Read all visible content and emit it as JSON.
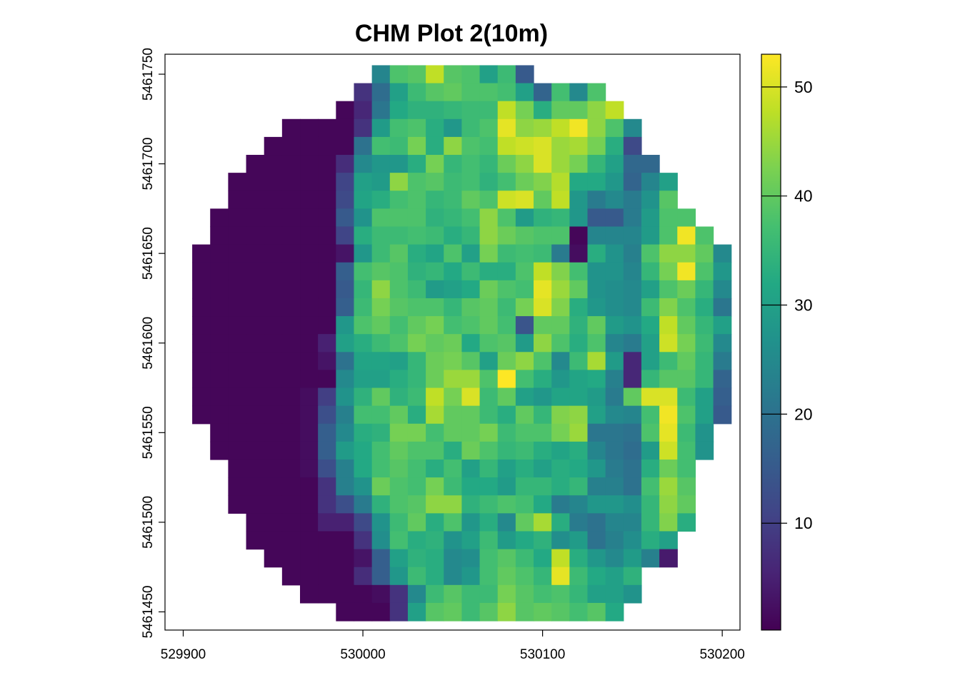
{
  "chart_data": {
    "type": "heatmap",
    "title": "CHM Plot 2(10m)",
    "xlabel": "",
    "ylabel": "",
    "x_ticks": [
      529900,
      530000,
      530100,
      530200
    ],
    "y_ticks": [
      5461450,
      5461500,
      5461550,
      5461600,
      5461650,
      5461700,
      5461750
    ],
    "xlim": [
      529890,
      530210
    ],
    "ylim": [
      5461440,
      5461760
    ],
    "cell_size": 10,
    "x_start": 529900,
    "y_start": 5461750,
    "colorbar": {
      "ticks": [
        10,
        20,
        30,
        40,
        50
      ],
      "range": [
        0.2,
        53
      ],
      "palette": "viridis"
    },
    "grid": [
      [
        null,
        null,
        null,
        null,
        null,
        null,
        null,
        null,
        null,
        null,
        null,
        24,
        38,
        39,
        48,
        39,
        38,
        30,
        36,
        15,
        null,
        null,
        null,
        null,
        null,
        null,
        null,
        null,
        null,
        null,
        null
      ],
      [
        null,
        null,
        null,
        null,
        null,
        null,
        null,
        null,
        null,
        null,
        8,
        19,
        30,
        36,
        39,
        40,
        38,
        38,
        37,
        30,
        17,
        37,
        25,
        38,
        null,
        null,
        null,
        null,
        null,
        null,
        null
      ],
      [
        null,
        null,
        null,
        null,
        null,
        null,
        null,
        null,
        null,
        1,
        6,
        21,
        32,
        34,
        34,
        35,
        36,
        36,
        48,
        42,
        33,
        40,
        40,
        44,
        48,
        null,
        null,
        null,
        null,
        null,
        null
      ],
      [
        null,
        null,
        null,
        null,
        null,
        null,
        1,
        1,
        1,
        1,
        8,
        29,
        37,
        38,
        33,
        28,
        36,
        38,
        51,
        44,
        45,
        48,
        52,
        44,
        38,
        25,
        null,
        null,
        null,
        null,
        null
      ],
      [
        null,
        null,
        null,
        null,
        null,
        1,
        1,
        1,
        1,
        1,
        20,
        37,
        36,
        42,
        33,
        44,
        38,
        37,
        48,
        49,
        50,
        45,
        46,
        42,
        33,
        12,
        null,
        null,
        null,
        null,
        null
      ],
      [
        null,
        null,
        null,
        null,
        1,
        1,
        1,
        1,
        1,
        7,
        25,
        28,
        28,
        33,
        42,
        35,
        37,
        35,
        41,
        44,
        50,
        45,
        42,
        35,
        30,
        18,
        18,
        null,
        null,
        null,
        null
      ],
      [
        null,
        null,
        null,
        1,
        1,
        1,
        1,
        1,
        1,
        11,
        30,
        29,
        44,
        38,
        39,
        36,
        37,
        34,
        37,
        41,
        43,
        47,
        32,
        32,
        28,
        17,
        24,
        30,
        null,
        null,
        null
      ],
      [
        null,
        null,
        null,
        1,
        1,
        1,
        1,
        1,
        1,
        12,
        31,
        33,
        37,
        38,
        35,
        36,
        40,
        38,
        49,
        50,
        40,
        48,
        28,
        22,
        25,
        22,
        27,
        39,
        null,
        null,
        null
      ],
      [
        null,
        null,
        1,
        1,
        1,
        1,
        1,
        1,
        1,
        15,
        27,
        38,
        38,
        38,
        34,
        35,
        37,
        44,
        38,
        29,
        34,
        35,
        28,
        15,
        15,
        22,
        29,
        38,
        38,
        null,
        null
      ],
      [
        null,
        null,
        1,
        1,
        1,
        1,
        1,
        1,
        1,
        11,
        33,
        36,
        36,
        37,
        36,
        33,
        35,
        44,
        41,
        39,
        38,
        38,
        1,
        24,
        24,
        24,
        29,
        38,
        52,
        38,
        null
      ],
      [
        null,
        1,
        1,
        1,
        1,
        1,
        1,
        1,
        1,
        3,
        28,
        36,
        39,
        33,
        31,
        38,
        30,
        42,
        36,
        37,
        36,
        22,
        2,
        33,
        27,
        23,
        38,
        44,
        44,
        40,
        25
      ],
      [
        null,
        1,
        1,
        1,
        1,
        1,
        1,
        1,
        1,
        16,
        37,
        39,
        38,
        34,
        35,
        32,
        36,
        33,
        33,
        38,
        48,
        43,
        37,
        27,
        27,
        24,
        35,
        42,
        52,
        38,
        28
      ],
      [
        null,
        1,
        1,
        1,
        1,
        1,
        1,
        1,
        1,
        15,
        35,
        44,
        38,
        36,
        29,
        30,
        32,
        41,
        38,
        37,
        51,
        45,
        40,
        27,
        26,
        25,
        30,
        38,
        41,
        35,
        25
      ],
      [
        null,
        1,
        1,
        1,
        1,
        1,
        1,
        1,
        1,
        16,
        36,
        42,
        39,
        38,
        38,
        35,
        39,
        40,
        36,
        42,
        50,
        43,
        33,
        28,
        26,
        25,
        36,
        43,
        38,
        33,
        21
      ],
      [
        null,
        1,
        1,
        1,
        1,
        1,
        1,
        1,
        1,
        28,
        38,
        40,
        37,
        40,
        42,
        37,
        38,
        40,
        37,
        14,
        40,
        40,
        34,
        40,
        29,
        27,
        32,
        48,
        40,
        35,
        30
      ],
      [
        null,
        1,
        1,
        1,
        1,
        1,
        1,
        1,
        5,
        30,
        33,
        36,
        38,
        42,
        40,
        41,
        32,
        38,
        39,
        29,
        44,
        38,
        33,
        38,
        24,
        22,
        30,
        49,
        42,
        36,
        25
      ],
      [
        null,
        1,
        1,
        1,
        1,
        1,
        1,
        1,
        3,
        20,
        31,
        31,
        30,
        35,
        41,
        42,
        39,
        30,
        41,
        44,
        38,
        25,
        36,
        46,
        29,
        6,
        30,
        36,
        40,
        35,
        22
      ],
      [
        null,
        1,
        1,
        1,
        1,
        1,
        1,
        1,
        1,
        25,
        30,
        30,
        33,
        35,
        41,
        45,
        45,
        38,
        53,
        37,
        33,
        28,
        31,
        32,
        23,
        6,
        35,
        39,
        39,
        35,
        17
      ],
      [
        null,
        1,
        1,
        1,
        1,
        1,
        1,
        2,
        10,
        27,
        34,
        40,
        34,
        36,
        48,
        42,
        50,
        36,
        40,
        30,
        28,
        31,
        31,
        29,
        22,
        40,
        50,
        50,
        36,
        30,
        16
      ],
      [
        null,
        1,
        1,
        1,
        1,
        1,
        1,
        2,
        13,
        23,
        37,
        37,
        40,
        33,
        46,
        40,
        40,
        36,
        33,
        40,
        35,
        43,
        44,
        30,
        25,
        24,
        37,
        52,
        38,
        30,
        15
      ],
      [
        null,
        null,
        1,
        1,
        1,
        1,
        1,
        2,
        16,
        25,
        33,
        34,
        42,
        42,
        37,
        40,
        40,
        42,
        36,
        38,
        38,
        42,
        45,
        21,
        21,
        20,
        38,
        51,
        36,
        27,
        null
      ],
      [
        null,
        null,
        1,
        1,
        1,
        1,
        1,
        2,
        16,
        29,
        32,
        37,
        40,
        38,
        38,
        33,
        41,
        38,
        35,
        36,
        33,
        31,
        33,
        24,
        21,
        19,
        29,
        49,
        37,
        27,
        null
      ],
      [
        null,
        null,
        null,
        1,
        1,
        1,
        1,
        2,
        13,
        23,
        32,
        37,
        39,
        37,
        33,
        37,
        30,
        35,
        30,
        33,
        30,
        33,
        32,
        28,
        22,
        20,
        33,
        41,
        37,
        null,
        null
      ],
      [
        null,
        null,
        null,
        1,
        1,
        1,
        1,
        1,
        8,
        23,
        27,
        41,
        38,
        37,
        42,
        36,
        32,
        32,
        29,
        35,
        35,
        33,
        35,
        23,
        23,
        20,
        37,
        45,
        39,
        null,
        null
      ],
      [
        null,
        null,
        null,
        1,
        1,
        1,
        1,
        1,
        8,
        13,
        22,
        34,
        38,
        39,
        44,
        44,
        34,
        36,
        38,
        37,
        32,
        22,
        24,
        28,
        28,
        26,
        35,
        44,
        40,
        null,
        null
      ],
      [
        null,
        null,
        null,
        null,
        1,
        1,
        1,
        1,
        5,
        5,
        12,
        27,
        36,
        40,
        33,
        38,
        28,
        33,
        25,
        40,
        46,
        33,
        22,
        20,
        24,
        24,
        35,
        43,
        33,
        null,
        null
      ],
      [
        null,
        null,
        null,
        null,
        1,
        1,
        1,
        1,
        1,
        1,
        8,
        26,
        37,
        33,
        34,
        27,
        30,
        36,
        29,
        32,
        34,
        26,
        29,
        20,
        23,
        26,
        33,
        30,
        null,
        null,
        null
      ],
      [
        null,
        null,
        null,
        null,
        null,
        1,
        1,
        1,
        1,
        1,
        3,
        16,
        30,
        34,
        33,
        25,
        26,
        37,
        39,
        36,
        32,
        48,
        33,
        28,
        25,
        29,
        23,
        4,
        null,
        null,
        null
      ],
      [
        null,
        null,
        null,
        null,
        null,
        null,
        1,
        1,
        1,
        1,
        7,
        16,
        28,
        36,
        33,
        25,
        28,
        37,
        40,
        38,
        35,
        51,
        36,
        32,
        30,
        34,
        null,
        null,
        null,
        null,
        null
      ],
      [
        null,
        null,
        null,
        null,
        null,
        null,
        null,
        1,
        1,
        1,
        1,
        2,
        8,
        25,
        36,
        39,
        36,
        36,
        42,
        39,
        37,
        38,
        35,
        30,
        30,
        27,
        null,
        null,
        null,
        null,
        null
      ],
      [
        null,
        null,
        null,
        null,
        null,
        null,
        null,
        null,
        null,
        1,
        1,
        1,
        8,
        30,
        39,
        40,
        36,
        39,
        44,
        39,
        40,
        39,
        37,
        39,
        32,
        null,
        null,
        null,
        null,
        null,
        null
      ]
    ]
  }
}
